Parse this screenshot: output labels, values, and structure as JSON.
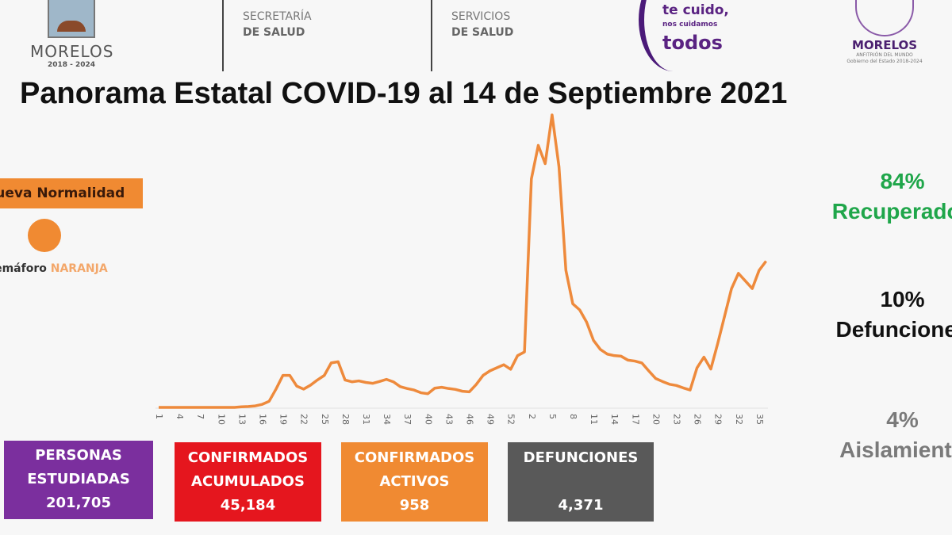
{
  "header": {
    "logo_morelos": {
      "name": "MORELOS",
      "years": "2018 - 2024"
    },
    "secretaria": {
      "line1": "SECRETARÍA",
      "line2": "DE SALUD"
    },
    "servicios": {
      "line1": "SERVICIOS",
      "line2": "DE SALUD"
    },
    "campaign": {
      "line1": "te cuido,",
      "line2": "nos cuidamos",
      "line3": "todos"
    },
    "logo_gobierno": {
      "name": "MORELOS",
      "sub1": "ANFITRIÓN DEL MUNDO",
      "sub2": "Gobierno del Estado 2018-2024"
    }
  },
  "title": "Panorama Estatal COVID-19 al 14 de Septiembre 2021",
  "status": {
    "phase": "Nueva Normalidad",
    "semaforo_label": "Semáforo",
    "semaforo_color_name": "NARANJA",
    "semaforo_color": "#f08a32"
  },
  "outcomes": [
    {
      "percent": "84%",
      "label": "Recuperados",
      "color": "#1fa64a"
    },
    {
      "percent": "10%",
      "label": "Defunciones",
      "color": "#111111"
    },
    {
      "percent": "4%",
      "label": "Aislamiento",
      "color": "#7a7a7a"
    }
  ],
  "stats": [
    {
      "line1": "PERSONAS",
      "line2": "ESTUDIADAS",
      "value": "201,705",
      "color": "#7b2f9e"
    },
    {
      "line1": "CONFIRMADOS",
      "line2": "ACUMULADOS",
      "value": "45,184",
      "color": "#e5161e"
    },
    {
      "line1": "CONFIRMADOS",
      "line2": "ACTIVOS",
      "value": "958",
      "color": "#f08a32"
    },
    {
      "line1": "DEFUNCIONES",
      "line2": "",
      "value": "4,371",
      "color": "#595959"
    }
  ],
  "chart_data": {
    "type": "line",
    "title": "",
    "xlabel": "",
    "ylabel": "",
    "y_axis_shown": false,
    "grid": false,
    "line_color": "#ee8a3c",
    "x_tick_labels": [
      "1",
      "4",
      "7",
      "10",
      "13",
      "16",
      "19",
      "22",
      "25",
      "28",
      "31",
      "34",
      "37",
      "40",
      "43",
      "46",
      "49",
      "52",
      "2",
      "5",
      "8",
      "11",
      "14",
      "17",
      "20",
      "23",
      "26",
      "29",
      "32",
      "35"
    ],
    "x": [
      "1",
      "2",
      "3",
      "4",
      "5",
      "6",
      "7",
      "8",
      "9",
      "10",
      "11",
      "12",
      "13",
      "14",
      "15",
      "16",
      "17",
      "18",
      "19",
      "20",
      "21",
      "22",
      "23",
      "24",
      "25",
      "26",
      "27",
      "28",
      "29",
      "30",
      "31",
      "32",
      "33",
      "34",
      "35",
      "36",
      "37",
      "38",
      "39",
      "40",
      "41",
      "42",
      "43",
      "44",
      "45",
      "46",
      "47",
      "48",
      "49",
      "50",
      "51",
      "52",
      "53",
      "1",
      "2",
      "3",
      "4",
      "5",
      "6",
      "7",
      "8",
      "9",
      "10",
      "11",
      "12",
      "13",
      "14",
      "15",
      "16",
      "17",
      "18",
      "19",
      "20",
      "21",
      "22",
      "23",
      "24",
      "25",
      "26",
      "27",
      "28",
      "29",
      "30",
      "31",
      "32",
      "33",
      "34",
      "35",
      "36"
    ],
    "series": [
      {
        "values": [
          0,
          0,
          0,
          0,
          0,
          0,
          0,
          0,
          0,
          0,
          0,
          0,
          0.2,
          0.3,
          0.5,
          1,
          2,
          6,
          10.5,
          10.5,
          7,
          6,
          7.3,
          9,
          10.5,
          14.6,
          15,
          9,
          8.4,
          8.7,
          8.2,
          7.9,
          8.5,
          9.2,
          8.4,
          6.8,
          6.2,
          5.7,
          4.8,
          4.5,
          6.3,
          6.6,
          6.2,
          5.9,
          5.3,
          5.1,
          7.5,
          10.5,
          12,
          13,
          14,
          12.5,
          17,
          18.2,
          75,
          86,
          80,
          96,
          79,
          45,
          34,
          32,
          28,
          22,
          19,
          17.5,
          17,
          16.8,
          15.5,
          15.2,
          14.6,
          12,
          9.5,
          8.5,
          7.6,
          7.2,
          6.4,
          5.7,
          13,
          16.5,
          12.6,
          21,
          30,
          39,
          44,
          41.5,
          39,
          45,
          48
        ]
      }
    ]
  }
}
